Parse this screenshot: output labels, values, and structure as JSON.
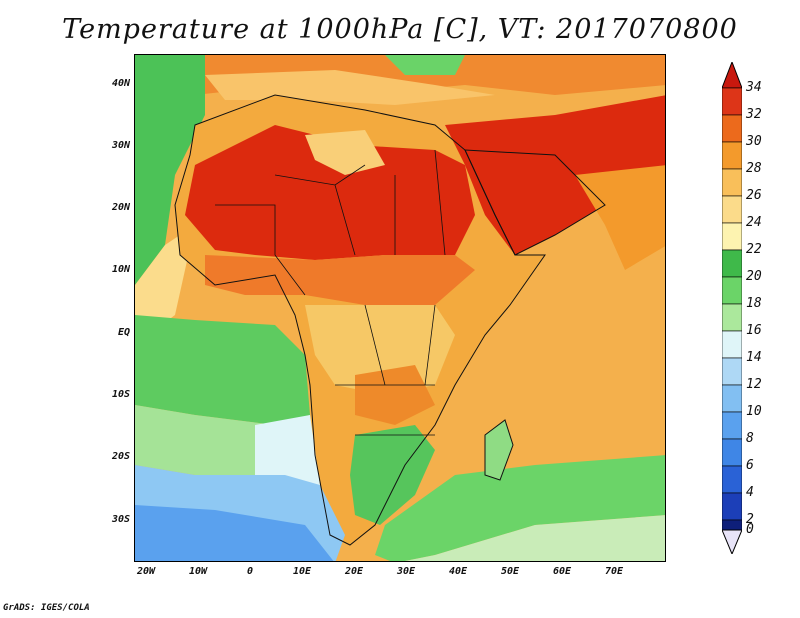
{
  "title": "Temperature at 1000hPa [C], VT: 2017070800",
  "credit": "GrADS: IGES/COLA",
  "map": {
    "region": "Africa, Middle East, Indian Ocean",
    "lat_range": [
      -36,
      45
    ],
    "lon_range": [
      -23,
      80
    ],
    "lat_labels": [
      "40N",
      "30N",
      "20N",
      "10N",
      "EQ",
      "10S",
      "20S",
      "30S"
    ],
    "lon_labels": [
      "20W",
      "10W",
      "0",
      "10E",
      "20E",
      "30E",
      "40E",
      "50E",
      "60E",
      "70E"
    ]
  },
  "colorbar": {
    "labels": [
      "34",
      "32",
      "30",
      "28",
      "26",
      "24",
      "22",
      "20",
      "18",
      "16",
      "14",
      "12",
      "10",
      "8",
      "6",
      "4",
      "2",
      "0"
    ],
    "colors": [
      "#ffffff",
      "#0e1f7a",
      "#1c3fb8",
      "#2a62d6",
      "#3f86e6",
      "#5aa1ee",
      "#82bff2",
      "#aed8f5",
      "#dff5f8",
      "#abe89c",
      "#6bd468",
      "#3fb94a",
      "#fdf3b0",
      "#fbdb8a",
      "#f9bf5a",
      "#f39a2c",
      "#ec6a1c",
      "#dd3518",
      "#c8180e"
    ]
  },
  "zones": [
    {
      "name": "ocean",
      "color": "#f0a030"
    },
    {
      "name": "sahara",
      "color": "#dc2a0e"
    },
    {
      "name": "sahel",
      "color": "#f0782a"
    },
    {
      "name": "congo",
      "color": "#f4b84c"
    },
    {
      "name": "south-atlantic-green",
      "color": "#5ecb60"
    },
    {
      "name": "south-atlantic-cool",
      "color": "#9fe28e"
    },
    {
      "name": "southern-ocean-blue",
      "color": "#6aaef0"
    },
    {
      "name": "north-atlantic-green",
      "color": "#45bd4f"
    },
    {
      "name": "arabia",
      "color": "#dc2a0e"
    },
    {
      "name": "indian-ocean",
      "color": "#f2ac48"
    },
    {
      "name": "southern-africa",
      "color": "#52c35a"
    }
  ]
}
